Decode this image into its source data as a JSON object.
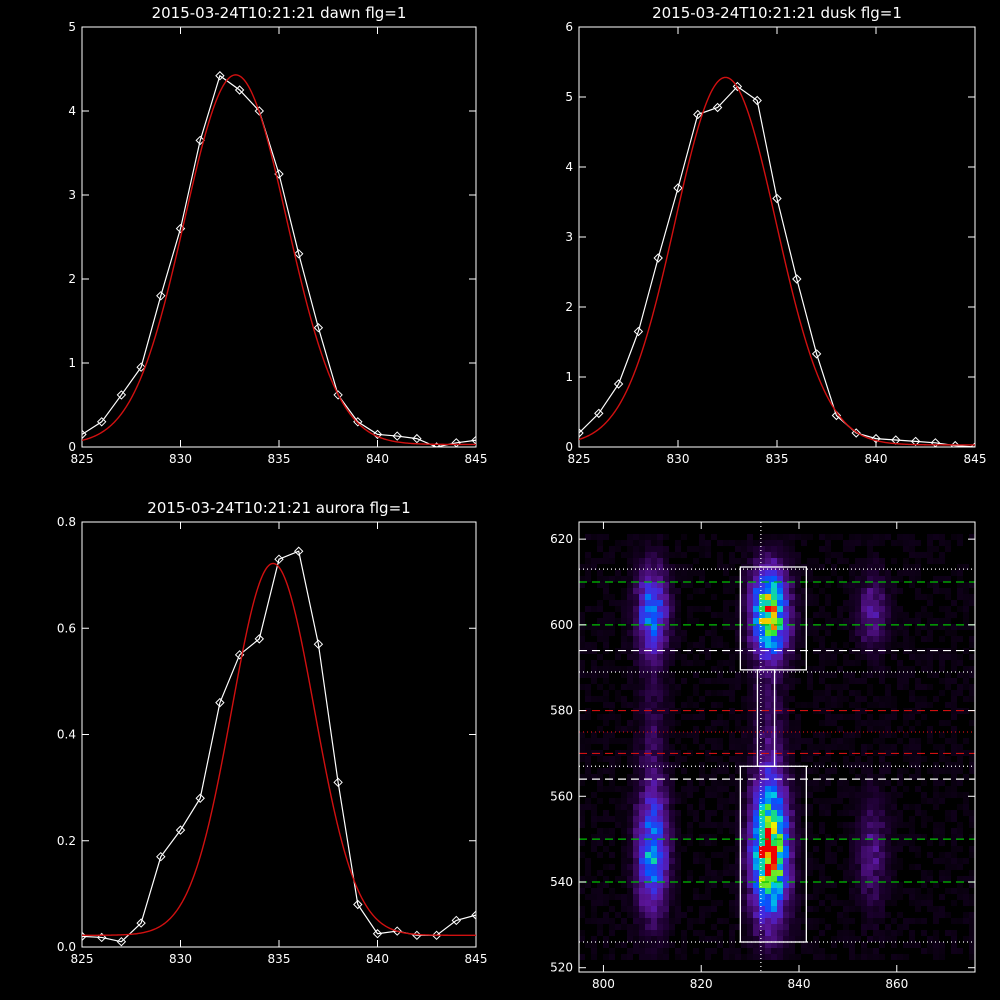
{
  "chart_data": [
    {
      "type": "line",
      "title": "2015-03-24T10:21:21 dawn flg=1",
      "xlim": [
        825,
        845
      ],
      "ylim": [
        0,
        5
      ],
      "xticks": [
        825,
        830,
        835,
        840,
        845
      ],
      "yticks": [
        0,
        1,
        2,
        3,
        4,
        5
      ],
      "series": [
        {
          "color": "#ffffff",
          "markers": "diamond",
          "x": [
            825,
            826,
            827,
            828,
            829,
            830,
            831,
            832,
            833,
            834,
            835,
            836,
            837,
            838,
            839,
            840,
            841,
            842,
            843,
            844,
            845
          ],
          "y": [
            0.15,
            0.3,
            0.62,
            0.95,
            1.8,
            2.6,
            3.65,
            4.42,
            4.25,
            4.0,
            3.25,
            2.3,
            1.42,
            0.62,
            0.3,
            0.15,
            0.13,
            0.1,
            0.0,
            0.05,
            0.08
          ]
        },
        {
          "color": "#d01010",
          "markers": "none",
          "fit": {
            "amp": 4.4,
            "center": 832.8,
            "sigma": 2.6,
            "offset": 0.03
          }
        }
      ]
    },
    {
      "type": "line",
      "title": "2015-03-24T10:21:21 dusk flg=1",
      "xlim": [
        825,
        845
      ],
      "ylim": [
        0,
        6
      ],
      "xticks": [
        825,
        830,
        835,
        840,
        845
      ],
      "yticks": [
        0,
        1,
        2,
        3,
        4,
        5,
        6
      ],
      "series": [
        {
          "color": "#ffffff",
          "markers": "diamond",
          "x": [
            825,
            826,
            827,
            828,
            829,
            830,
            831,
            832,
            833,
            834,
            835,
            836,
            837,
            838,
            839,
            840,
            841,
            842,
            843,
            844,
            845
          ],
          "y": [
            0.2,
            0.48,
            0.9,
            1.65,
            2.7,
            3.7,
            4.75,
            4.85,
            5.15,
            4.95,
            3.55,
            2.4,
            1.33,
            0.45,
            0.2,
            0.12,
            0.1,
            0.08,
            0.06,
            0.02,
            0.0
          ]
        },
        {
          "color": "#d01010",
          "markers": "none",
          "fit": {
            "amp": 5.25,
            "center": 832.4,
            "sigma": 2.55,
            "offset": 0.03
          }
        }
      ]
    },
    {
      "type": "line",
      "title": "2015-03-24T10:21:21 aurora flg=1",
      "xlim": [
        825,
        845
      ],
      "ylim": [
        0,
        0.8
      ],
      "xticks": [
        825,
        830,
        835,
        840,
        845
      ],
      "yticks": [
        0.0,
        0.2,
        0.4,
        0.6,
        0.8
      ],
      "series": [
        {
          "color": "#ffffff",
          "markers": "diamond",
          "x": [
            825,
            826,
            827,
            828,
            829,
            830,
            831,
            832,
            833,
            834,
            835,
            836,
            837,
            838,
            839,
            840,
            841,
            842,
            843,
            844,
            845
          ],
          "y": [
            0.02,
            0.018,
            0.01,
            0.045,
            0.17,
            0.22,
            0.28,
            0.46,
            0.55,
            0.58,
            0.73,
            0.745,
            0.57,
            0.31,
            0.08,
            0.025,
            0.03,
            0.022,
            0.022,
            0.05,
            0.06
          ]
        },
        {
          "color": "#d01010",
          "markers": "none",
          "fit": {
            "amp": 0.7,
            "center": 834.7,
            "sigma": 2.1,
            "offset": 0.022
          }
        }
      ]
    },
    {
      "type": "heatmap",
      "title": "",
      "xlim": [
        795,
        876
      ],
      "ylim": [
        519,
        624
      ],
      "xticks": [
        800,
        820,
        840,
        860
      ],
      "yticks": [
        520,
        540,
        560,
        580,
        600,
        620
      ],
      "colormap": "rainbow",
      "sources": [
        {
          "x": 810,
          "y": 603,
          "sx": 2.2,
          "sy": 7,
          "amp": 0.55
        },
        {
          "x": 810,
          "y": 547,
          "sx": 2.2,
          "sy": 10,
          "amp": 0.6
        },
        {
          "x": 834,
          "y": 603,
          "sx": 2.6,
          "sy": 7,
          "amp": 0.9
        },
        {
          "x": 834,
          "y": 547,
          "sx": 2.6,
          "sy": 11,
          "amp": 1.0
        },
        {
          "x": 855,
          "y": 603,
          "sx": 2.2,
          "sy": 6,
          "amp": 0.25
        },
        {
          "x": 855,
          "y": 547,
          "sx": 2.2,
          "sy": 9,
          "amp": 0.22
        },
        {
          "x": 810,
          "y": 575,
          "sx": 2.0,
          "sy": 12,
          "amp": 0.12
        },
        {
          "x": 834,
          "y": 575,
          "sx": 2.4,
          "sy": 12,
          "amp": 0.14
        }
      ],
      "vline": {
        "x": 832.2,
        "color": "#ffffff",
        "style": "dotted"
      },
      "hlines": [
        {
          "y": 613,
          "color": "#ffffff",
          "style": "dotted"
        },
        {
          "y": 610,
          "color": "#00c000",
          "style": "dashed"
        },
        {
          "y": 600,
          "color": "#00c000",
          "style": "dashed"
        },
        {
          "y": 594,
          "color": "#ffffff",
          "style": "dashed"
        },
        {
          "y": 589,
          "color": "#ffffff",
          "style": "dotted"
        },
        {
          "y": 580,
          "color": "#d01010",
          "style": "dashed"
        },
        {
          "y": 575,
          "color": "#d01010",
          "style": "dotted"
        },
        {
          "y": 570,
          "color": "#d01010",
          "style": "dashed"
        },
        {
          "y": 567,
          "color": "#ffffff",
          "style": "dotted"
        },
        {
          "y": 564,
          "color": "#ffffff",
          "style": "dashed"
        },
        {
          "y": 550,
          "color": "#00c000",
          "style": "dashed"
        },
        {
          "y": 540,
          "color": "#00c000",
          "style": "dashed"
        },
        {
          "y": 526,
          "color": "#ffffff",
          "style": "dotted"
        }
      ],
      "boxes": [
        {
          "x0": 828,
          "x1": 841.5,
          "y0": 589.5,
          "y1": 613.5
        },
        {
          "x0": 828,
          "x1": 841.5,
          "y0": 526,
          "y1": 567
        },
        {
          "x0": 831.5,
          "x1": 835,
          "y0": 567,
          "y1": 589.5
        }
      ]
    }
  ]
}
